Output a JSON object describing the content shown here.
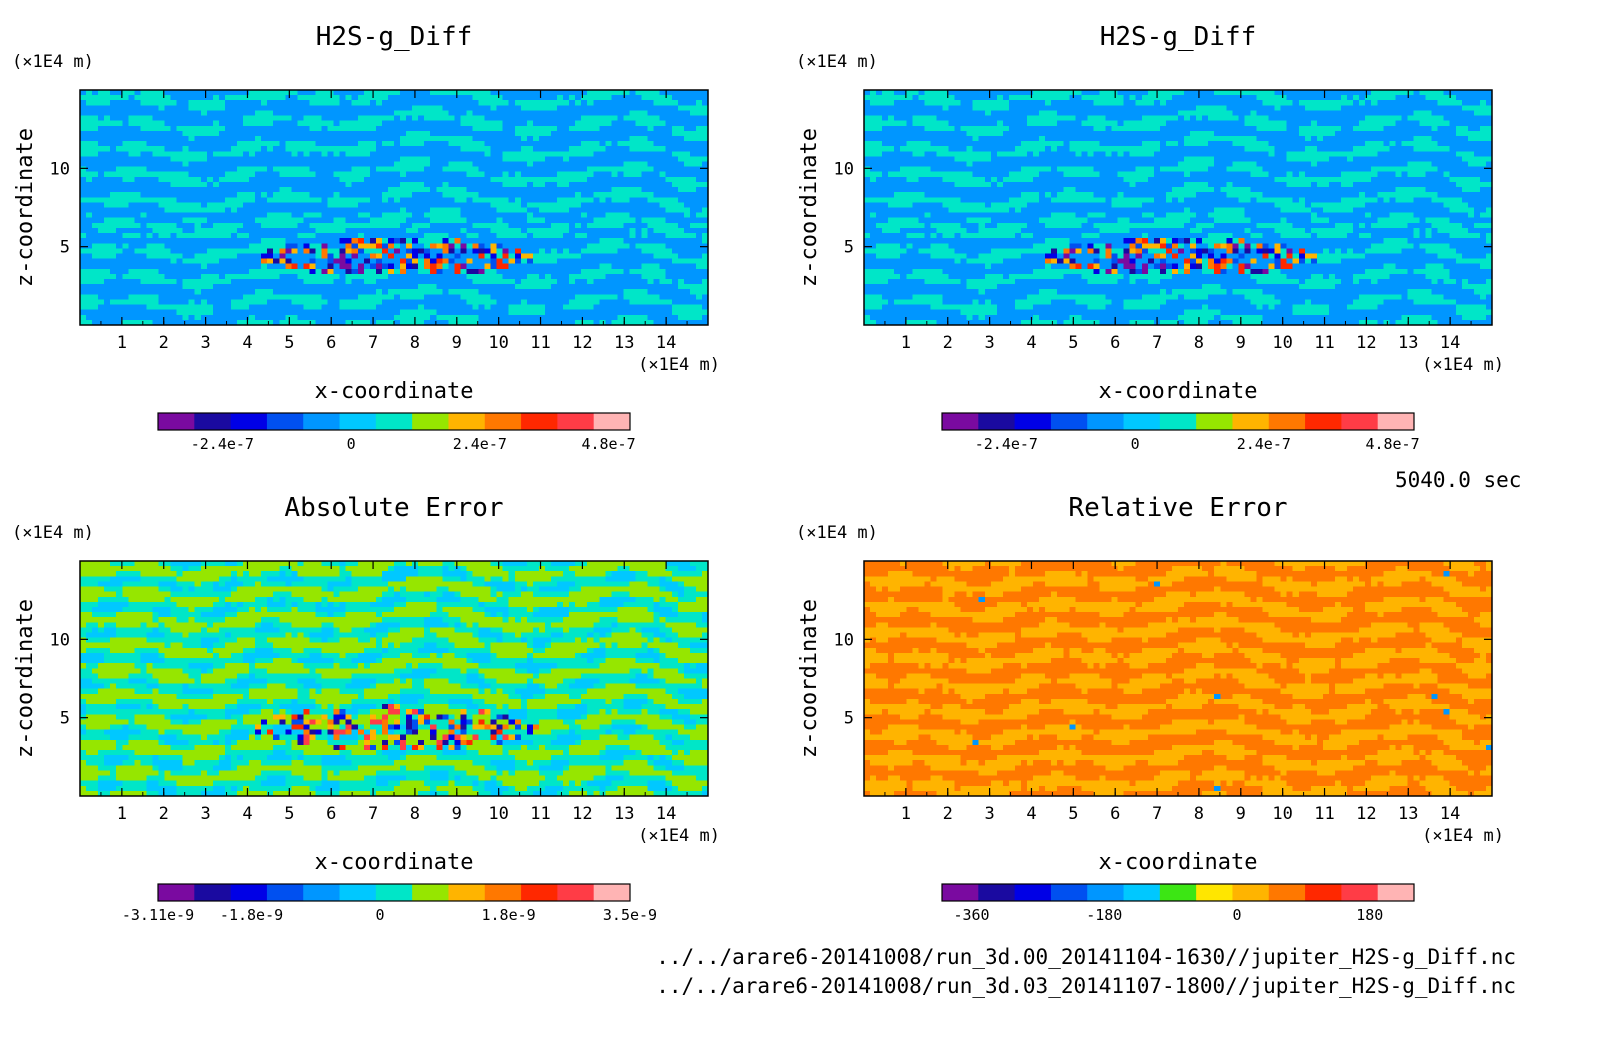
{
  "time_label": "5040.0 sec",
  "footer": {
    "file1": "../../arare6-20141008/run_3d.00_20141104-1630//jupiter_H2S-g_Diff.nc",
    "file2": "../../arare6-20141008/run_3d.03_20141107-1800//jupiter_H2S-g_Diff.nc"
  },
  "chart_data": [
    {
      "type": "heatmap",
      "title": "H2S-g_Diff",
      "xlabel": "x-coordinate",
      "ylabel": "z-coordinate",
      "x_unit": "(×1E4 m)",
      "y_unit": "(×1E4 m)",
      "xlim": [
        0,
        15
      ],
      "ylim": [
        0,
        15
      ],
      "xticks": [
        1,
        2,
        3,
        4,
        5,
        6,
        7,
        8,
        9,
        10,
        11,
        12,
        13,
        14
      ],
      "yticks": [
        5,
        10
      ],
      "colorbar": {
        "colors": [
          "#7a0aa0",
          "#1a0aa0",
          "#0000e6",
          "#0050f0",
          "#0096ff",
          "#00c8ff",
          "#00e6c8",
          "#96e600",
          "#ffb400",
          "#ff7800",
          "#ff2800",
          "#ff3c46",
          "#ffb4b4"
        ],
        "tick_values": [
          -2.4e-07,
          0,
          2.4e-07,
          4.8e-07
        ],
        "tick_labels": [
          "-2.4e-7",
          "0",
          "2.4e-7",
          "4.8e-7"
        ],
        "range": [
          -3.6e-07,
          5.2e-07
        ]
      },
      "scheme": "diff",
      "seed": 7
    },
    {
      "type": "heatmap",
      "title": "H2S-g_Diff",
      "xlabel": "x-coordinate",
      "ylabel": "z-coordinate",
      "x_unit": "(×1E4 m)",
      "y_unit": "(×1E4 m)",
      "xlim": [
        0,
        15
      ],
      "ylim": [
        0,
        15
      ],
      "xticks": [
        1,
        2,
        3,
        4,
        5,
        6,
        7,
        8,
        9,
        10,
        11,
        12,
        13,
        14
      ],
      "yticks": [
        5,
        10
      ],
      "colorbar": {
        "colors": [
          "#7a0aa0",
          "#1a0aa0",
          "#0000e6",
          "#0050f0",
          "#0096ff",
          "#00c8ff",
          "#00e6c8",
          "#96e600",
          "#ffb400",
          "#ff7800",
          "#ff2800",
          "#ff3c46",
          "#ffb4b4"
        ],
        "tick_values": [
          -2.4e-07,
          0,
          2.4e-07,
          4.8e-07
        ],
        "tick_labels": [
          "-2.4e-7",
          "0",
          "2.4e-7",
          "4.8e-7"
        ],
        "range": [
          -3.6e-07,
          5.2e-07
        ]
      },
      "scheme": "diff",
      "seed": 7
    },
    {
      "type": "heatmap",
      "title": "Absolute Error",
      "xlabel": "x-coordinate",
      "ylabel": "z-coordinate",
      "x_unit": "(×1E4 m)",
      "y_unit": "(×1E4 m)",
      "xlim": [
        0,
        15
      ],
      "ylim": [
        0,
        15
      ],
      "xticks": [
        1,
        2,
        3,
        4,
        5,
        6,
        7,
        8,
        9,
        10,
        11,
        12,
        13,
        14
      ],
      "yticks": [
        5,
        10
      ],
      "colorbar": {
        "colors": [
          "#7a0aa0",
          "#1a0aa0",
          "#0000e6",
          "#0050f0",
          "#0096ff",
          "#00c8ff",
          "#00e6c8",
          "#96e600",
          "#ffb400",
          "#ff7800",
          "#ff2800",
          "#ff3c46",
          "#ffb4b4"
        ],
        "tick_values": [
          -3.11e-09,
          -1.8e-09,
          0,
          1.8e-09,
          3.5e-09
        ],
        "tick_labels": [
          "-3.11e-9",
          "-1.8e-9",
          "0",
          "1.8e-9",
          "3.5e-9"
        ],
        "range": [
          -3.11e-09,
          3.5e-09
        ]
      },
      "scheme": "abs",
      "seed": 19
    },
    {
      "type": "heatmap",
      "title": "Relative Error",
      "xlabel": "x-coordinate",
      "ylabel": "z-coordinate",
      "x_unit": "(×1E4 m)",
      "y_unit": "(×1E4 m)",
      "xlim": [
        0,
        15
      ],
      "ylim": [
        0,
        15
      ],
      "xticks": [
        1,
        2,
        3,
        4,
        5,
        6,
        7,
        8,
        9,
        10,
        11,
        12,
        13,
        14
      ],
      "yticks": [
        5,
        10
      ],
      "colorbar": {
        "colors": [
          "#7a0aa0",
          "#1a0aa0",
          "#0000e6",
          "#0050f0",
          "#0096ff",
          "#00c8ff",
          "#3ce614",
          "#ffe600",
          "#ffb400",
          "#ff7800",
          "#ff2800",
          "#ff3c46",
          "#ffb4b4"
        ],
        "tick_values": [
          -360,
          -180,
          0,
          180
        ],
        "tick_labels": [
          "-360",
          "-180",
          "0",
          "180"
        ],
        "range": [
          -400,
          240
        ]
      },
      "scheme": "rel",
      "seed": 31
    }
  ]
}
